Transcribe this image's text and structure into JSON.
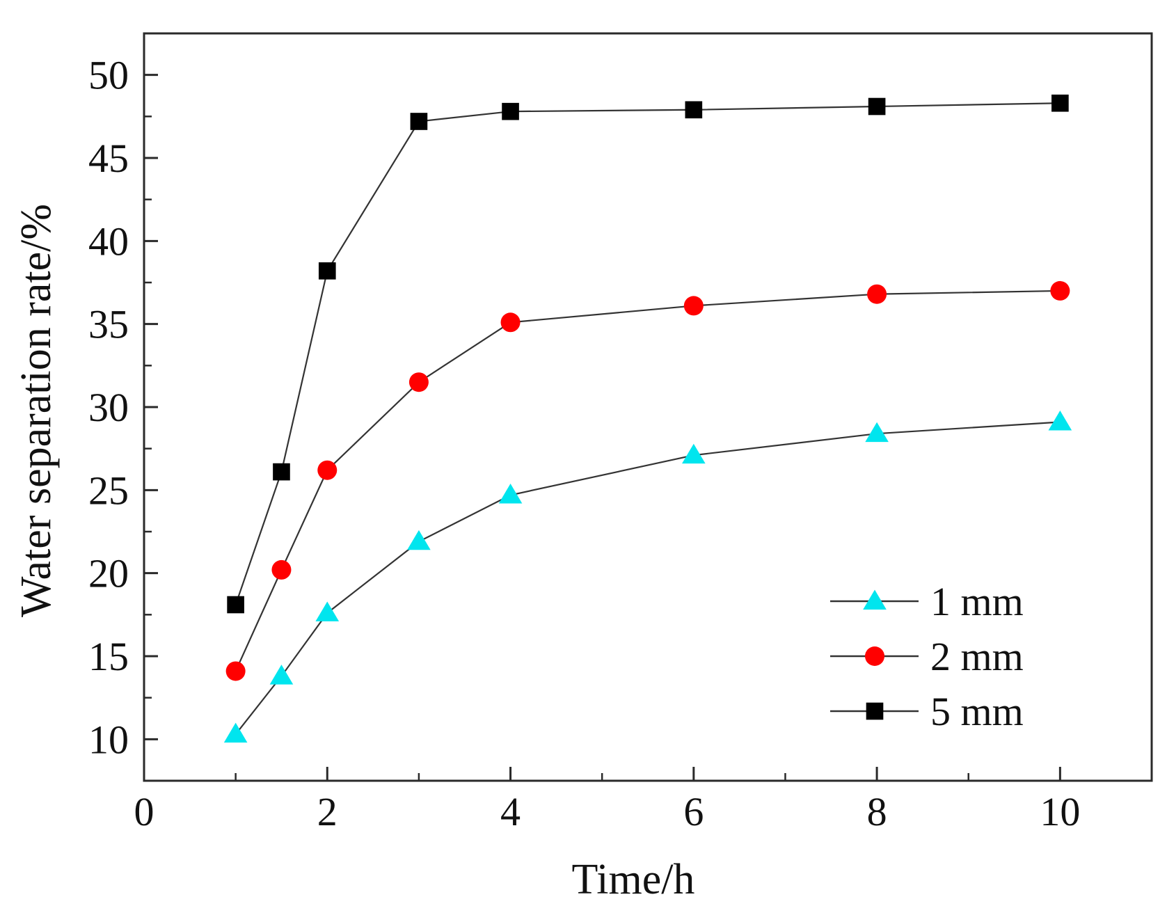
{
  "chart_data": {
    "type": "line",
    "title": "",
    "xlabel": "Time/h",
    "ylabel": "Water separation rate/%",
    "xlim": [
      0,
      11
    ],
    "ylim": [
      7.5,
      52.5
    ],
    "xticks": [
      0,
      2,
      4,
      6,
      8,
      10
    ],
    "xticks_minor": [
      1,
      3,
      5,
      7,
      9
    ],
    "yticks": [
      10,
      15,
      20,
      25,
      30,
      35,
      40,
      45,
      50
    ],
    "grid": false,
    "legend_position": "bottom-right",
    "series": [
      {
        "name": "1 mm",
        "marker": "triangle",
        "color": "#00e5ee",
        "x": [
          1,
          1.5,
          2,
          3,
          4,
          6,
          8,
          10
        ],
        "y": [
          10.3,
          13.8,
          17.6,
          21.9,
          24.7,
          27.1,
          28.4,
          29.1
        ]
      },
      {
        "name": "2 mm",
        "marker": "circle",
        "color": "#ff0000",
        "x": [
          1,
          1.5,
          2,
          3,
          4,
          6,
          8,
          10
        ],
        "y": [
          14.1,
          20.2,
          26.2,
          31.5,
          35.1,
          36.1,
          36.8,
          37.0
        ]
      },
      {
        "name": "5 mm",
        "marker": "square",
        "color": "#000000",
        "x": [
          1,
          1.5,
          2,
          3,
          4,
          6,
          8,
          10
        ],
        "y": [
          18.1,
          26.1,
          38.2,
          47.2,
          47.8,
          47.9,
          48.1,
          48.3
        ]
      }
    ]
  },
  "colors": {
    "axis": "#2a2a2a",
    "line": "#333333"
  }
}
